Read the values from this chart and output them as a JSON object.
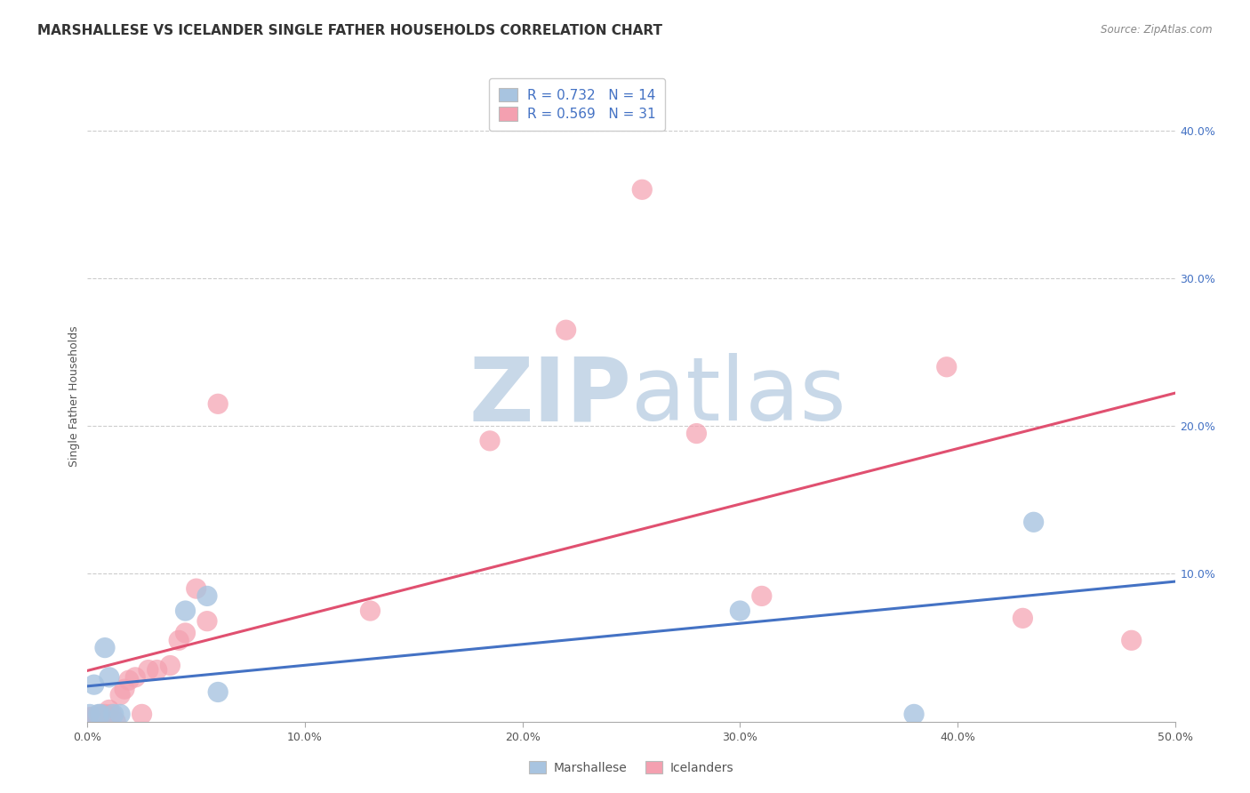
{
  "title": "MARSHALLESE VS ICELANDER SINGLE FATHER HOUSEHOLDS CORRELATION CHART",
  "source": "Source: ZipAtlas.com",
  "ylabel": "Single Father Households",
  "xlim": [
    0.0,
    0.5
  ],
  "ylim": [
    0.0,
    0.44
  ],
  "grid_yticks": [
    0.1,
    0.2,
    0.3,
    0.4
  ],
  "marshallese_R": 0.732,
  "marshallese_N": 14,
  "icelander_R": 0.569,
  "icelander_N": 31,
  "marshallese_color": "#a8c4e0",
  "icelander_color": "#f4a0b0",
  "marshallese_line_color": "#4472c4",
  "icelander_line_color": "#e05070",
  "watermark_color": "#c8d8e8",
  "background_color": "#ffffff",
  "marshallese_x": [
    0.001,
    0.003,
    0.005,
    0.006,
    0.008,
    0.01,
    0.012,
    0.015,
    0.045,
    0.055,
    0.06,
    0.3,
    0.38,
    0.435
  ],
  "marshallese_y": [
    0.005,
    0.025,
    0.005,
    0.005,
    0.05,
    0.03,
    0.005,
    0.005,
    0.075,
    0.085,
    0.02,
    0.075,
    0.005,
    0.135
  ],
  "icelander_x": [
    0.001,
    0.002,
    0.004,
    0.005,
    0.006,
    0.008,
    0.01,
    0.011,
    0.013,
    0.015,
    0.017,
    0.019,
    0.022,
    0.025,
    0.028,
    0.032,
    0.038,
    0.042,
    0.045,
    0.05,
    0.055,
    0.06,
    0.13,
    0.185,
    0.22,
    0.255,
    0.28,
    0.31,
    0.395,
    0.43,
    0.48
  ],
  "icelander_y": [
    0.003,
    0.003,
    0.003,
    0.003,
    0.005,
    0.005,
    0.008,
    0.005,
    0.0,
    0.018,
    0.022,
    0.028,
    0.03,
    0.005,
    0.035,
    0.035,
    0.038,
    0.055,
    0.06,
    0.09,
    0.068,
    0.215,
    0.075,
    0.19,
    0.265,
    0.36,
    0.195,
    0.085,
    0.24,
    0.07,
    0.055
  ],
  "title_fontsize": 11,
  "axis_label_fontsize": 9,
  "tick_fontsize": 9,
  "legend_fontsize": 11
}
